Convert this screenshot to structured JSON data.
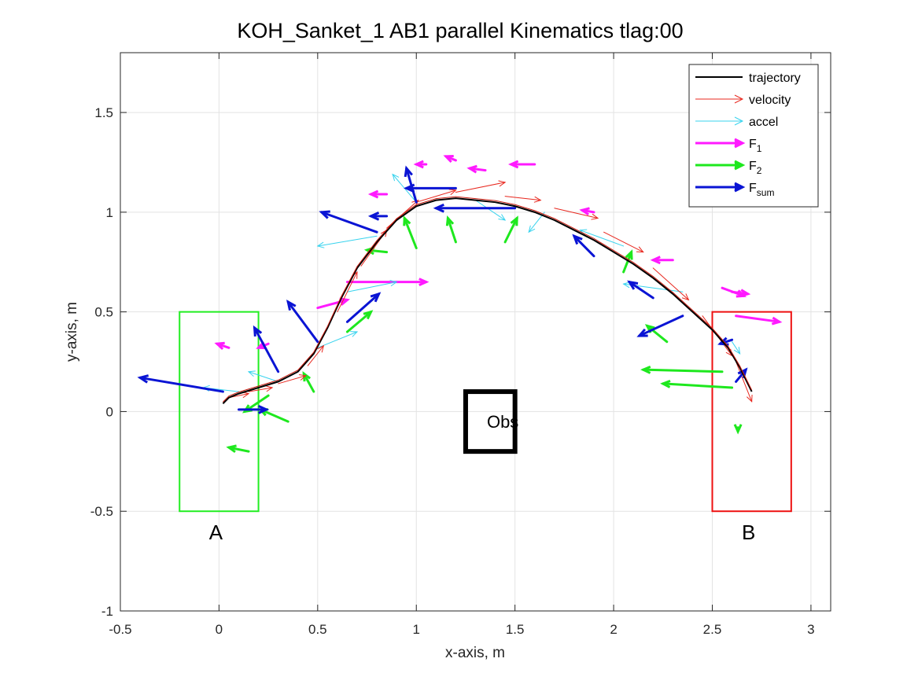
{
  "chart_data": {
    "type": "quiver",
    "title": "KOH_Sanket_1    AB1    parallel    Kinematics tlag:00",
    "xlabel": "x-axis, m",
    "ylabel": "y-axis, m",
    "xlim": [
      -0.5,
      3.1
    ],
    "ylim": [
      -1.0,
      1.8
    ],
    "xticks": [
      "-0.5",
      "0",
      "0.5",
      "1",
      "1.5",
      "2",
      "2.5",
      "3"
    ],
    "yticks": [
      "-1",
      "-0.5",
      "0",
      "0.5",
      "1",
      "1.5"
    ],
    "grid": true,
    "legend_position": "top-right",
    "legend": [
      {
        "label": "trajectory",
        "sub": "",
        "color": "#000000",
        "style": "line"
      },
      {
        "label": "velocity",
        "sub": "",
        "color": "#e8281f",
        "style": "thin-arrow"
      },
      {
        "label": "accel",
        "sub": "",
        "color": "#38d3ee",
        "style": "thin-arrow"
      },
      {
        "label": "F",
        "sub": "1",
        "color": "#ff1aff",
        "style": "thick-arrow"
      },
      {
        "label": "F",
        "sub": "2",
        "color": "#1ee81e",
        "style": "thick-arrow"
      },
      {
        "label": "F",
        "sub": "sum",
        "color": "#0a14d4",
        "style": "thick-arrow"
      }
    ],
    "regions": [
      {
        "label": "A",
        "x": [
          -0.2,
          0.2
        ],
        "y": [
          -0.5,
          0.5
        ],
        "color": "#22ee22"
      },
      {
        "label": "B",
        "x": [
          2.5,
          2.9
        ],
        "y": [
          -0.5,
          0.5
        ],
        "color": "#ee1111"
      }
    ],
    "obstacle": {
      "label": "Obs",
      "x": [
        1.25,
        1.5
      ],
      "y": [
        -0.2,
        0.1
      ],
      "color": "#000000"
    },
    "trajectory": {
      "x": [
        0.02,
        0.05,
        0.1,
        0.2,
        0.3,
        0.4,
        0.48,
        0.55,
        0.62,
        0.7,
        0.8,
        0.9,
        1.0,
        1.1,
        1.2,
        1.3,
        1.4,
        1.5,
        1.6,
        1.7,
        1.8,
        1.9,
        2.0,
        2.1,
        2.2,
        2.3,
        2.4,
        2.5,
        2.58,
        2.64,
        2.7
      ],
      "y": [
        0.04,
        0.07,
        0.09,
        0.12,
        0.15,
        0.2,
        0.29,
        0.42,
        0.57,
        0.72,
        0.85,
        0.96,
        1.03,
        1.06,
        1.07,
        1.06,
        1.05,
        1.03,
        1.0,
        0.96,
        0.91,
        0.86,
        0.8,
        0.74,
        0.67,
        0.59,
        0.5,
        0.41,
        0.32,
        0.22,
        0.1
      ]
    },
    "velocity": {
      "x": [
        0.05,
        0.15,
        0.3,
        0.45,
        0.6,
        0.72,
        0.85,
        1.0,
        1.2,
        1.45,
        1.7,
        1.95,
        2.2,
        2.45,
        2.62
      ],
      "y": [
        0.07,
        0.1,
        0.14,
        0.23,
        0.5,
        0.73,
        0.92,
        1.05,
        1.1,
        1.08,
        1.02,
        0.9,
        0.72,
        0.48,
        0.25
      ],
      "u": [
        0.1,
        0.12,
        0.14,
        0.08,
        0.1,
        0.13,
        0.16,
        0.2,
        0.25,
        0.18,
        0.22,
        0.2,
        0.18,
        0.15,
        0.08
      ],
      "v": [
        0.02,
        0.02,
        0.04,
        0.1,
        0.2,
        0.18,
        0.14,
        0.06,
        0.05,
        -0.02,
        -0.05,
        -0.1,
        -0.16,
        -0.2,
        -0.2
      ]
    },
    "accel": {
      "x": [
        0.1,
        0.3,
        0.5,
        0.65,
        0.8,
        1.0,
        1.3,
        1.65,
        2.05,
        2.35,
        2.6
      ],
      "y": [
        0.1,
        0.15,
        0.32,
        0.6,
        0.88,
        1.05,
        1.06,
        1.0,
        0.83,
        0.6,
        0.35
      ],
      "u": [
        -0.18,
        -0.15,
        0.2,
        0.25,
        -0.3,
        -0.12,
        0.15,
        -0.08,
        -0.22,
        -0.3,
        0.04
      ],
      "v": [
        0.02,
        0.05,
        0.08,
        0.05,
        -0.05,
        0.14,
        -0.1,
        -0.1,
        0.08,
        0.04,
        -0.06
      ]
    },
    "F1": {
      "x": [
        0.05,
        0.25,
        0.5,
        0.65,
        0.85,
        1.2,
        1.6,
        1.9,
        2.3,
        2.55,
        2.62,
        2.6,
        1.05,
        1.35
      ],
      "y": [
        0.32,
        0.34,
        0.52,
        0.65,
        1.09,
        1.26,
        1.24,
        1.0,
        0.76,
        0.62,
        0.48,
        0.6,
        1.24,
        1.21
      ],
      "u": [
        -0.06,
        -0.05,
        0.15,
        0.4,
        -0.08,
        -0.05,
        -0.12,
        -0.06,
        -0.1,
        0.11,
        0.22,
        0.08,
        -0.05,
        -0.08
      ],
      "v": [
        0.02,
        -0.02,
        0.04,
        0.0,
        0.0,
        0.02,
        0.0,
        0.01,
        0.0,
        -0.04,
        -0.03,
        -0.01,
        0.0,
        0.01
      ]
    },
    "F2": {
      "x": [
        0.15,
        0.25,
        0.35,
        0.48,
        0.65,
        0.85,
        1.0,
        1.2,
        1.45,
        2.05,
        2.27,
        2.63,
        2.6,
        2.55
      ],
      "y": [
        -0.2,
        0.08,
        -0.05,
        0.1,
        0.4,
        0.8,
        0.82,
        0.85,
        0.85,
        0.7,
        0.35,
        -0.08,
        0.12,
        0.2
      ],
      "u": [
        -0.1,
        -0.12,
        -0.14,
        -0.05,
        0.12,
        -0.1,
        -0.06,
        -0.04,
        0.06,
        0.04,
        -0.1,
        0.0,
        -0.35,
        -0.4
      ],
      "v": [
        0.02,
        -0.08,
        0.06,
        0.09,
        0.1,
        0.01,
        0.15,
        0.12,
        0.12,
        0.1,
        0.08,
        -0.02,
        0.02,
        0.01
      ]
    },
    "Fsum": {
      "x": [
        0.02,
        0.1,
        0.3,
        0.5,
        0.65,
        0.8,
        0.85,
        1.0,
        1.2,
        1.5,
        1.9,
        2.2,
        2.35,
        2.6,
        2.62
      ],
      "y": [
        0.1,
        0.01,
        0.2,
        0.35,
        0.45,
        0.9,
        0.98,
        1.05,
        1.12,
        1.02,
        0.78,
        0.57,
        0.48,
        0.36,
        0.15
      ],
      "u": [
        -0.42,
        0.14,
        -0.12,
        -0.15,
        0.16,
        -0.28,
        -0.08,
        -0.05,
        -0.25,
        -0.4,
        -0.1,
        -0.12,
        -0.22,
        -0.06,
        0.05
      ],
      "v": [
        0.07,
        0.0,
        0.22,
        0.2,
        0.14,
        0.1,
        0.0,
        0.17,
        0.0,
        0.0,
        0.1,
        0.08,
        -0.1,
        -0.02,
        0.06
      ]
    }
  }
}
